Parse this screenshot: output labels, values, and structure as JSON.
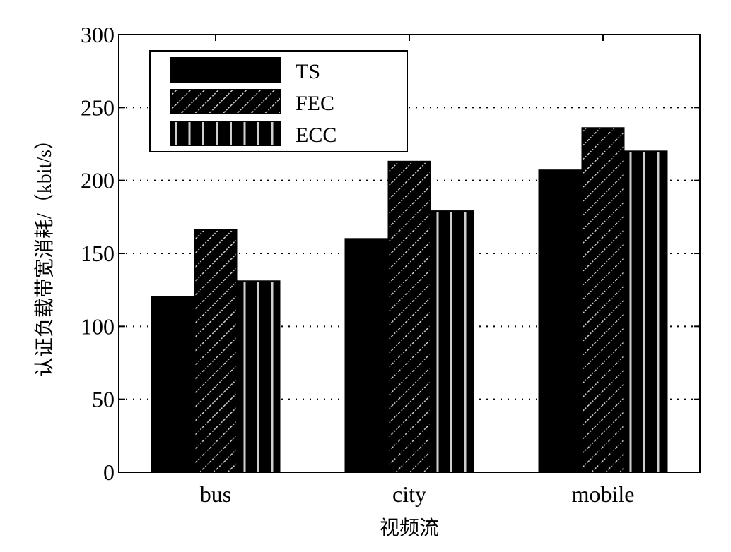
{
  "chart_data": {
    "type": "bar",
    "title": "",
    "xlabel": "视频流",
    "ylabel": "认证负载带宽消耗/（kbit/s）",
    "categories": [
      "bus",
      "city",
      "mobile"
    ],
    "series": [
      {
        "name": "TS",
        "values": [
          120,
          160,
          207
        ],
        "pattern": "solid",
        "color": "#000000"
      },
      {
        "name": "FEC",
        "values": [
          166,
          213,
          236
        ],
        "pattern": "diagonal",
        "color": "#000000"
      },
      {
        "name": "ECC",
        "values": [
          131,
          179,
          220
        ],
        "pattern": "vertical",
        "color": "#000000"
      }
    ],
    "ylim": [
      0,
      300
    ],
    "yticks": [
      "0",
      "50",
      "100",
      "150",
      "200",
      "250",
      "300"
    ],
    "grid": "horizontal-dotted",
    "legend_position": "top-left"
  }
}
